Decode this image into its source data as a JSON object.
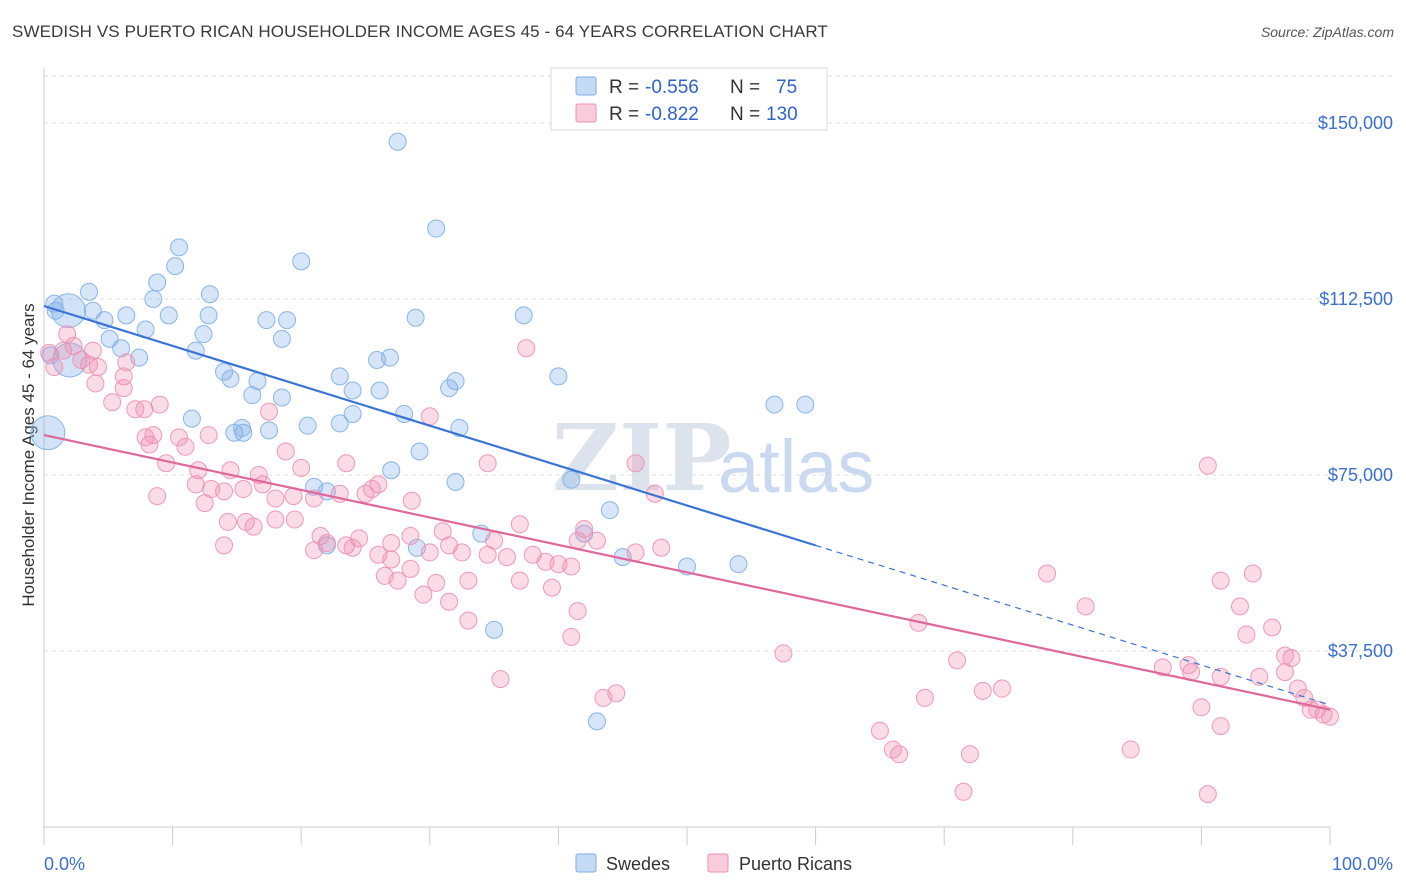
{
  "header": {
    "title": "SWEDISH VS PUERTO RICAN HOUSEHOLDER INCOME AGES 45 - 64 YEARS CORRELATION CHART",
    "source": "Source: ZipAtlas.com"
  },
  "watermark": {
    "zip": "ZIP",
    "atlas": "atlas"
  },
  "legend_box": {
    "rows": [
      {
        "r_label": "R =",
        "r_value": "-0.556",
        "n_label": "N =",
        "n_value": "75",
        "color": "#7eaee8"
      },
      {
        "r_label": "R =",
        "r_value": "-0.822",
        "n_label": "N =",
        "n_value": "130",
        "color": "#f08fb0"
      }
    ]
  },
  "bottom_legend": [
    {
      "label": "Swedes",
      "color": "#7eaee8"
    },
    {
      "label": "Puerto Ricans",
      "color": "#f08fb0"
    }
  ],
  "chart_data": {
    "type": "scatter",
    "title": "SWEDISH VS PUERTO RICAN HOUSEHOLDER INCOME AGES 45 - 64 YEARS CORRELATION CHART",
    "xlabel": "",
    "ylabel": "Householder Income Ages 45 - 64 years",
    "xlim": [
      0,
      100
    ],
    "ylim": [
      0,
      160000
    ],
    "x_tick_labels": [
      "0.0%",
      "100.0%"
    ],
    "y_ticks": [
      37500,
      75000,
      112500,
      150000
    ],
    "y_tick_labels": [
      "$37,500",
      "$75,000",
      "$112,500",
      "$150,000"
    ],
    "grid": true,
    "legend_position": "top-center",
    "series": [
      {
        "name": "Swedes",
        "color": "#7eaee8",
        "line_color": "#3a74d6",
        "trend": {
          "x0": 0,
          "y0": 111000,
          "x1": 60,
          "y1": 60000,
          "dashed_to_x": 100,
          "dashed_to_y": 26000
        },
        "points": [
          [
            27.5,
            146000
          ],
          [
            30.5,
            127500
          ],
          [
            10.5,
            123500
          ],
          [
            10.2,
            119500
          ],
          [
            20.0,
            120500
          ],
          [
            8.8,
            116000
          ],
          [
            8.5,
            112500
          ],
          [
            3.5,
            114000
          ],
          [
            0.9,
            110000
          ],
          [
            1.9,
            110000
          ],
          [
            3.8,
            110000
          ],
          [
            0.8,
            111500
          ],
          [
            4.7,
            108000
          ],
          [
            6.4,
            109000
          ],
          [
            9.7,
            109000
          ],
          [
            12.9,
            113500
          ],
          [
            12.8,
            109000
          ],
          [
            17.3,
            108000
          ],
          [
            18.9,
            108000
          ],
          [
            28.9,
            108500
          ],
          [
            37.3,
            109000
          ],
          [
            7.9,
            106000
          ],
          [
            12.4,
            105000
          ],
          [
            5.1,
            104000
          ],
          [
            18.5,
            104000
          ],
          [
            6.0,
            102000
          ],
          [
            11.8,
            101500
          ],
          [
            0.5,
            100500
          ],
          [
            7.4,
            100000
          ],
          [
            25.9,
            99500
          ],
          [
            26.9,
            100000
          ],
          [
            23.0,
            96000
          ],
          [
            14.0,
            97000
          ],
          [
            14.5,
            95500
          ],
          [
            16.6,
            95000
          ],
          [
            32.0,
            95000
          ],
          [
            40.0,
            96000
          ],
          [
            16.2,
            92000
          ],
          [
            18.5,
            91500
          ],
          [
            24.0,
            93000
          ],
          [
            26.1,
            93000
          ],
          [
            31.5,
            93500
          ],
          [
            56.8,
            90000
          ],
          [
            59.2,
            90000
          ],
          [
            11.5,
            87000
          ],
          [
            15.4,
            85000
          ],
          [
            20.5,
            85500
          ],
          [
            23.0,
            86000
          ],
          [
            24.0,
            88000
          ],
          [
            28.0,
            88000
          ],
          [
            32.3,
            85000
          ],
          [
            14.8,
            84000
          ],
          [
            15.5,
            84000
          ],
          [
            17.5,
            84500
          ],
          [
            2.0,
            99500
          ],
          [
            29.2,
            80000
          ],
          [
            27.0,
            76000
          ],
          [
            41.0,
            74000
          ],
          [
            21.0,
            72500
          ],
          [
            22.0,
            71500
          ],
          [
            32.0,
            73500
          ],
          [
            44.0,
            67500
          ],
          [
            22.0,
            60000
          ],
          [
            29.0,
            59500
          ],
          [
            34.0,
            62500
          ],
          [
            42.0,
            62500
          ],
          [
            45.0,
            57500
          ],
          [
            50.0,
            55500
          ],
          [
            54.0,
            56000
          ],
          [
            35.0,
            42000
          ],
          [
            43.0,
            22500
          ],
          [
            0.3,
            84000
          ]
        ],
        "sizes": {
          "large": [
            [
              0.3,
              84000
            ],
            [
              2.0,
              99500
            ],
            [
              1.9,
              110000
            ]
          ]
        }
      },
      {
        "name": "Puerto Ricans",
        "color": "#f08fb0",
        "line_color": "#e0679a",
        "trend": {
          "x0": 0,
          "y0": 83500,
          "x1": 100,
          "y1": 25000
        },
        "points": [
          [
            0.4,
            101000
          ],
          [
            0.8,
            98000
          ],
          [
            1.5,
            101500
          ],
          [
            1.8,
            105000
          ],
          [
            2.3,
            102500
          ],
          [
            2.9,
            99500
          ],
          [
            3.5,
            98500
          ],
          [
            3.8,
            101500
          ],
          [
            4.2,
            98000
          ],
          [
            4.0,
            94500
          ],
          [
            6.2,
            96000
          ],
          [
            6.4,
            99000
          ],
          [
            6.2,
            93500
          ],
          [
            5.3,
            90500
          ],
          [
            7.1,
            89000
          ],
          [
            7.8,
            89000
          ],
          [
            9.0,
            90000
          ],
          [
            7.9,
            83000
          ],
          [
            8.5,
            83500
          ],
          [
            8.2,
            81500
          ],
          [
            9.5,
            77500
          ],
          [
            10.5,
            83000
          ],
          [
            11.0,
            81000
          ],
          [
            12.8,
            83500
          ],
          [
            11.8,
            73000
          ],
          [
            12.0,
            76000
          ],
          [
            14.5,
            76000
          ],
          [
            16.7,
            75000
          ],
          [
            13.0,
            72000
          ],
          [
            14.0,
            71500
          ],
          [
            15.5,
            72000
          ],
          [
            17.0,
            73000
          ],
          [
            18.0,
            70000
          ],
          [
            19.4,
            70500
          ],
          [
            20.0,
            76500
          ],
          [
            21.0,
            70000
          ],
          [
            23.0,
            71000
          ],
          [
            25.0,
            71000
          ],
          [
            26.0,
            73000
          ],
          [
            28.6,
            69500
          ],
          [
            8.8,
            70500
          ],
          [
            12.5,
            69000
          ],
          [
            14.3,
            65000
          ],
          [
            15.7,
            65000
          ],
          [
            16.3,
            64000
          ],
          [
            18.0,
            65500
          ],
          [
            19.5,
            65500
          ],
          [
            21.5,
            62000
          ],
          [
            23.5,
            60000
          ],
          [
            24.0,
            59500
          ],
          [
            26.0,
            58000
          ],
          [
            27.0,
            60500
          ],
          [
            28.5,
            62000
          ],
          [
            30.0,
            58500
          ],
          [
            31.0,
            63000
          ],
          [
            31.5,
            60000
          ],
          [
            32.5,
            58500
          ],
          [
            34.5,
            58000
          ],
          [
            36.0,
            57500
          ],
          [
            38.0,
            58000
          ],
          [
            39.0,
            56500
          ],
          [
            41.0,
            55500
          ],
          [
            43.0,
            61000
          ],
          [
            46.0,
            58500
          ],
          [
            48.0,
            59500
          ],
          [
            14.0,
            60000
          ],
          [
            21.0,
            59000
          ],
          [
            22.0,
            60500
          ],
          [
            24.5,
            61500
          ],
          [
            35.0,
            61000
          ],
          [
            27.0,
            57000
          ],
          [
            28.5,
            55000
          ],
          [
            27.5,
            52500
          ],
          [
            26.5,
            53500
          ],
          [
            30.5,
            52000
          ],
          [
            33.0,
            52500
          ],
          [
            29.5,
            49500
          ],
          [
            31.5,
            48000
          ],
          [
            37.0,
            52500
          ],
          [
            39.5,
            51000
          ],
          [
            40.0,
            56000
          ],
          [
            41.5,
            61000
          ],
          [
            33.0,
            44000
          ],
          [
            37.0,
            64500
          ],
          [
            42.0,
            63500
          ],
          [
            46.0,
            77500
          ],
          [
            47.5,
            71000
          ],
          [
            23.5,
            77500
          ],
          [
            25.5,
            72000
          ],
          [
            34.5,
            77500
          ],
          [
            30.0,
            87500
          ],
          [
            37.5,
            102000
          ],
          [
            18.8,
            80000
          ],
          [
            17.5,
            88500
          ],
          [
            41.5,
            46000
          ],
          [
            41.0,
            40500
          ],
          [
            35.5,
            31500
          ],
          [
            43.5,
            27500
          ],
          [
            44.5,
            28500
          ],
          [
            57.5,
            37000
          ],
          [
            68.0,
            43500
          ],
          [
            71.0,
            35500
          ],
          [
            68.5,
            27500
          ],
          [
            73.0,
            29000
          ],
          [
            74.5,
            29500
          ],
          [
            78.0,
            54000
          ],
          [
            81.0,
            47000
          ],
          [
            91.5,
            52500
          ],
          [
            93.0,
            47000
          ],
          [
            93.5,
            41000
          ],
          [
            94.5,
            32000
          ],
          [
            95.5,
            42500
          ],
          [
            94.0,
            54000
          ],
          [
            96.5,
            36500
          ],
          [
            97.0,
            36000
          ],
          [
            89.0,
            34500
          ],
          [
            89.2,
            33000
          ],
          [
            91.5,
            32000
          ],
          [
            90.5,
            77000
          ],
          [
            90.0,
            25500
          ],
          [
            91.5,
            21500
          ],
          [
            84.5,
            16500
          ],
          [
            87.0,
            34000
          ],
          [
            90.5,
            7000
          ],
          [
            96.5,
            33000
          ],
          [
            97.5,
            29500
          ],
          [
            98.0,
            27500
          ],
          [
            98.5,
            25000
          ],
          [
            99.0,
            25000
          ],
          [
            99.5,
            24000
          ],
          [
            100.0,
            23500
          ],
          [
            65.0,
            20500
          ],
          [
            66.0,
            16500
          ],
          [
            66.5,
            15500
          ],
          [
            72.0,
            15500
          ],
          [
            71.5,
            7500
          ]
        ]
      }
    ]
  }
}
